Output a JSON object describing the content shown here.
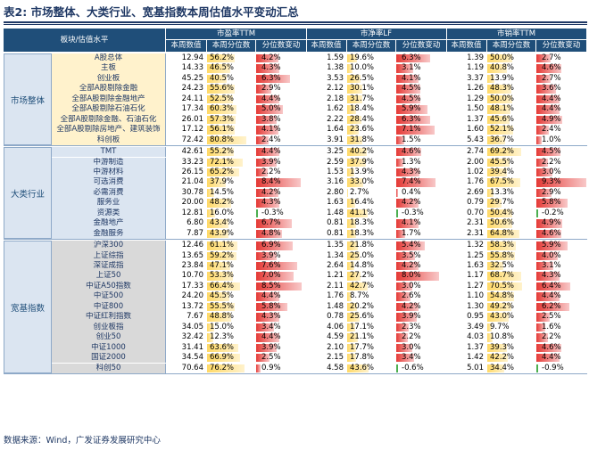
{
  "title": {
    "label": "表2:",
    "text": "市场整体、大类行业、宽基指数本周估值水平变动汇总"
  },
  "header": {
    "col0": "板块/估值水平",
    "groups": [
      "市盈率TTM",
      "市净率LF",
      "市销率TTM"
    ],
    "sub": [
      "本周数值",
      "本周分位数",
      "分位数变动"
    ]
  },
  "colors": {
    "bar_blue": "#e6b8e3",
    "bar_red": "#e88080",
    "bar_yellow": "#ffe699",
    "neg_green": "#4caf50"
  },
  "groups": [
    {
      "name": "市场整体",
      "bg": "#fff2cc",
      "rows": [
        {
          "name": "A股总体",
          "pe": [
            "12.94",
            "56.2%",
            "4.2%"
          ],
          "pb": [
            "1.59",
            "19.6%",
            "6.3%"
          ],
          "ps": [
            "1.39",
            "50.0%",
            "2.7%"
          ]
        },
        {
          "name": "主板",
          "pe": [
            "14.33",
            "46.5%",
            "4.3%"
          ],
          "pb": [
            "1.38",
            "10.0%",
            "3.1%"
          ],
          "ps": [
            "1.19",
            "40.8%",
            "4.6%"
          ]
        },
        {
          "name": "创业板",
          "pe": [
            "45.25",
            "40.5%",
            "6.3%"
          ],
          "pb": [
            "3.53",
            "26.5%",
            "4.1%"
          ],
          "ps": [
            "3.37",
            "13.9%",
            "2.7%"
          ]
        },
        {
          "name": "全部A股剔除金融",
          "pe": [
            "24.23",
            "55.6%",
            "2.9%"
          ],
          "pb": [
            "2.12",
            "30.1%",
            "4.5%"
          ],
          "ps": [
            "1.26",
            "48.3%",
            "3.6%"
          ]
        },
        {
          "name": "全部A股剔除金融地产",
          "pe": [
            "24.11",
            "52.5%",
            "4.4%"
          ],
          "pb": [
            "2.18",
            "31.7%",
            "4.5%"
          ],
          "ps": [
            "1.29",
            "50.0%",
            "4.4%"
          ]
        },
        {
          "name": "全部A股剔除石油石化",
          "pe": [
            "17.34",
            "60.3%",
            "5.0%"
          ],
          "pb": [
            "1.62",
            "18.4%",
            "5.9%"
          ],
          "ps": [
            "1.50",
            "48.1%",
            "4.4%"
          ]
        },
        {
          "name": "全部A股剔除金融、石油石化",
          "pe": [
            "26.01",
            "57.3%",
            "3.8%"
          ],
          "pb": [
            "2.22",
            "28.4%",
            "6.3%"
          ],
          "ps": [
            "1.37",
            "45.6%",
            "4.9%"
          ]
        },
        {
          "name": "全部A股剔除房地产、建筑装饰",
          "pe": [
            "17.12",
            "56.1%",
            "4.1%"
          ],
          "pb": [
            "1.64",
            "23.6%",
            "7.1%"
          ],
          "ps": [
            "1.60",
            "52.1%",
            "2.4%"
          ]
        },
        {
          "name": "科创板",
          "pe": [
            "72.42",
            "80.8%",
            "2.4%"
          ],
          "pb": [
            "3.91",
            "31.8%",
            "1.5%"
          ],
          "ps": [
            "5.43",
            "36.7%",
            "1.0%"
          ]
        }
      ]
    },
    {
      "name": "大类行业",
      "bg": "#dbe5f1",
      "rows": [
        {
          "name": "TMT",
          "pe": [
            "42.61",
            "55.2%",
            "4.4%"
          ],
          "pb": [
            "3.25",
            "40.2%",
            "4.6%"
          ],
          "ps": [
            "2.74",
            "69.2%",
            "4.5%"
          ]
        },
        {
          "name": "中游制造",
          "pe": [
            "33.23",
            "72.1%",
            "3.9%"
          ],
          "pb": [
            "2.59",
            "37.9%",
            "1.3%"
          ],
          "ps": [
            "2.00",
            "45.5%",
            "2.2%"
          ]
        },
        {
          "name": "中游材料",
          "pe": [
            "26.15",
            "65.2%",
            "2.2%"
          ],
          "pb": [
            "1.53",
            "13.9%",
            "4.3%"
          ],
          "ps": [
            "1.02",
            "39.4%",
            "3.0%"
          ]
        },
        {
          "name": "可选消费",
          "pe": [
            "21.04",
            "37.9%",
            "8.4%"
          ],
          "pb": [
            "3.16",
            "33.0%",
            "7.4%"
          ],
          "ps": [
            "1.76",
            "67.5%",
            "9.3%"
          ]
        },
        {
          "name": "必需消费",
          "pe": [
            "30.78",
            "14.5%",
            "4.2%"
          ],
          "pb": [
            "2.80",
            "2.7%",
            "0.4%"
          ],
          "ps": [
            "2.69",
            "13.3%",
            "2.9%"
          ]
        },
        {
          "name": "服务业",
          "pe": [
            "20.00",
            "48.2%",
            "4.3%"
          ],
          "pb": [
            "1.63",
            "16.4%",
            "4.2%"
          ],
          "ps": [
            "0.79",
            "29.7%",
            "5.8%"
          ]
        },
        {
          "name": "资源类",
          "pe": [
            "12.81",
            "16.0%",
            "-0.3%"
          ],
          "pb": [
            "1.48",
            "41.1%",
            "-0.3%"
          ],
          "ps": [
            "0.70",
            "50.4%",
            "-0.2%"
          ]
        },
        {
          "name": "金融地产",
          "pe": [
            "6.80",
            "43.4%",
            "6.7%"
          ],
          "pb": [
            "0.81",
            "18.3%",
            "4.1%"
          ],
          "ps": [
            "2.31",
            "50.6%",
            "4.9%"
          ]
        },
        {
          "name": "金融服务",
          "pe": [
            "7.87",
            "43.9%",
            "4.8%"
          ],
          "pb": [
            "0.81",
            "18.3%",
            "1.7%"
          ],
          "ps": [
            "2.31",
            "64.8%",
            "4.6%"
          ]
        }
      ]
    },
    {
      "name": "宽基指数",
      "bg": "#d9d9d9",
      "rows": [
        {
          "name": "沪深300",
          "pe": [
            "12.46",
            "61.1%",
            "6.9%"
          ],
          "pb": [
            "1.35",
            "21.8%",
            "5.4%"
          ],
          "ps": [
            "1.32",
            "58.3%",
            "5.9%"
          ]
        },
        {
          "name": "上证综指",
          "pe": [
            "13.65",
            "59.2%",
            "3.9%"
          ],
          "pb": [
            "1.34",
            "25.0%",
            "3.5%"
          ],
          "ps": [
            "1.25",
            "55.8%",
            "4.0%"
          ]
        },
        {
          "name": "深证成指",
          "pe": [
            "23.84",
            "47.1%",
            "7.6%"
          ],
          "pb": [
            "2.64",
            "14.8%",
            "4.2%"
          ],
          "ps": [
            "1.63",
            "32.5%",
            "3.1%"
          ]
        },
        {
          "name": "上证50",
          "pe": [
            "10.70",
            "53.3%",
            "7.0%"
          ],
          "pb": [
            "1.21",
            "27.2%",
            "8.0%"
          ],
          "ps": [
            "1.17",
            "68.7%",
            "4.3%"
          ]
        },
        {
          "name": "中证A50指数",
          "pe": [
            "17.33",
            "66.4%",
            "8.5%"
          ],
          "pb": [
            "2.11",
            "42.7%",
            "3.0%"
          ],
          "ps": [
            "1.27",
            "70.5%",
            "6.4%"
          ]
        },
        {
          "name": "中证500",
          "pe": [
            "24.20",
            "45.5%",
            "4.4%"
          ],
          "pb": [
            "1.76",
            "8.7%",
            "2.6%"
          ],
          "ps": [
            "1.10",
            "54.8%",
            "4.4%"
          ]
        },
        {
          "name": "中证800",
          "pe": [
            "13.72",
            "55.5%",
            "5.8%"
          ],
          "pb": [
            "1.48",
            "20.2%",
            "4.2%"
          ],
          "ps": [
            "1.30",
            "49.2%",
            "6.2%"
          ]
        },
        {
          "name": "中证红利指数",
          "pe": [
            "7.67",
            "48.8%",
            "4.3%"
          ],
          "pb": [
            "0.78",
            "25.6%",
            "3.9%"
          ],
          "ps": [
            "0.95",
            "43.0%",
            "2.5%"
          ]
        },
        {
          "name": "创业板指",
          "pe": [
            "34.05",
            "15.0%",
            "3.4%"
          ],
          "pb": [
            "4.06",
            "17.1%",
            "2.3%"
          ],
          "ps": [
            "3.49",
            "9.7%",
            "1.6%"
          ]
        },
        {
          "name": "创业50",
          "pe": [
            "32.42",
            "12.3%",
            "4.4%"
          ],
          "pb": [
            "4.59",
            "21.1%",
            "2.2%"
          ],
          "ps": [
            "4.03",
            "10.8%",
            "2.2%"
          ]
        },
        {
          "name": "中证1000",
          "pe": [
            "31.41",
            "63.6%",
            "3.9%"
          ],
          "pb": [
            "2.10",
            "17.7%",
            "3.0%"
          ],
          "ps": [
            "1.37",
            "39.3%",
            "4.6%"
          ]
        },
        {
          "name": "国证2000",
          "pe": [
            "34.54",
            "66.9%",
            "2.5%"
          ],
          "pb": [
            "2.15",
            "17.8%",
            "3.4%"
          ],
          "ps": [
            "1.42",
            "42.2%",
            "4.4%"
          ]
        },
        {
          "name": "科创50",
          "pe": [
            "70.64",
            "76.2%",
            "0.9%"
          ],
          "pb": [
            "4.58",
            "43.6%",
            "-0.6%"
          ],
          "ps": [
            "5.01",
            "34.4%",
            "-0.9%"
          ]
        }
      ]
    }
  ],
  "source": "数据来源：Wind，广发证券发展研究中心"
}
